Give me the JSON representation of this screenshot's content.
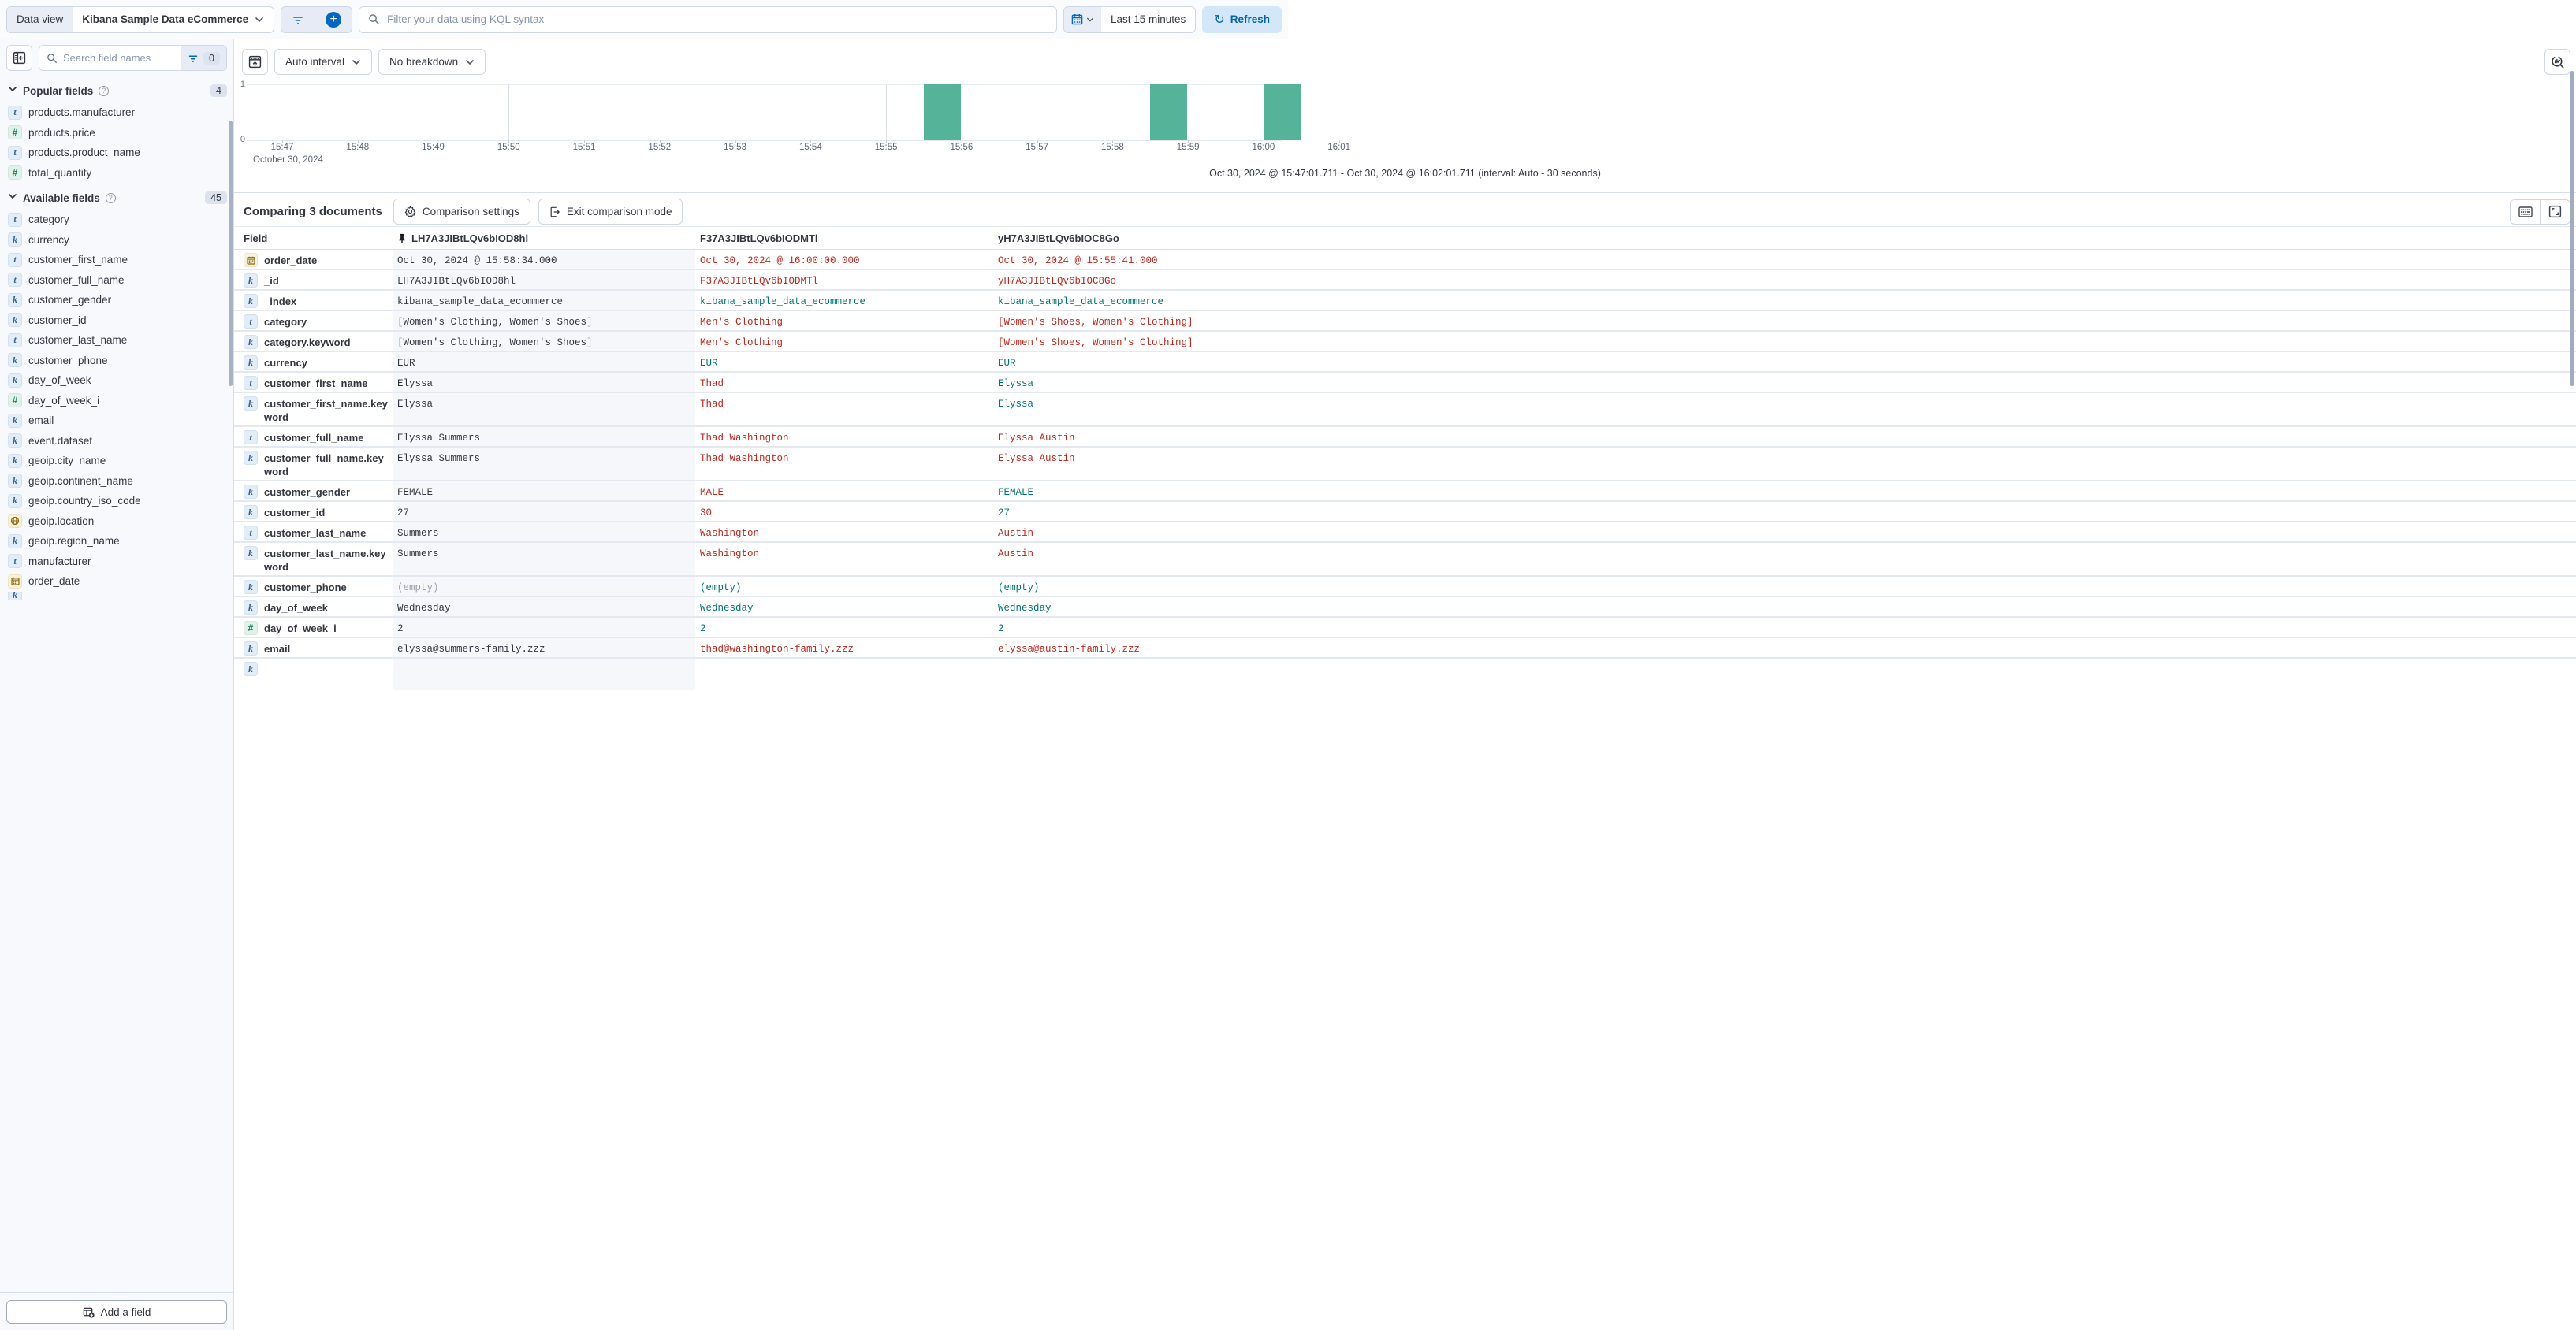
{
  "topbar": {
    "data_view_label": "Data view",
    "data_view_value": "Kibana Sample Data eCommerce",
    "search_placeholder": "Filter your data using KQL syntax",
    "time_range": "Last 15 minutes",
    "refresh_label": "Refresh"
  },
  "sidebar": {
    "search_placeholder": "Search field names",
    "filter_count": "0",
    "sections": [
      {
        "label": "Popular fields",
        "count": "4",
        "items": [
          {
            "icon": "t",
            "name": "products.manufacturer"
          },
          {
            "icon": "num",
            "name": "products.price"
          },
          {
            "icon": "t",
            "name": "products.product_name"
          },
          {
            "icon": "num",
            "name": "total_quantity"
          }
        ]
      },
      {
        "label": "Available fields",
        "count": "45",
        "items": [
          {
            "icon": "t",
            "name": "category"
          },
          {
            "icon": "k",
            "name": "currency"
          },
          {
            "icon": "t",
            "name": "customer_first_name"
          },
          {
            "icon": "t",
            "name": "customer_full_name"
          },
          {
            "icon": "k",
            "name": "customer_gender"
          },
          {
            "icon": "k",
            "name": "customer_id"
          },
          {
            "icon": "t",
            "name": "customer_last_name"
          },
          {
            "icon": "k",
            "name": "customer_phone"
          },
          {
            "icon": "k",
            "name": "day_of_week"
          },
          {
            "icon": "num",
            "name": "day_of_week_i"
          },
          {
            "icon": "k",
            "name": "email"
          },
          {
            "icon": "k",
            "name": "event.dataset"
          },
          {
            "icon": "k",
            "name": "geoip.city_name"
          },
          {
            "icon": "k",
            "name": "geoip.continent_name"
          },
          {
            "icon": "k",
            "name": "geoip.country_iso_code"
          },
          {
            "icon": "geo",
            "name": "geoip.location"
          },
          {
            "icon": "k",
            "name": "geoip.region_name"
          },
          {
            "icon": "t",
            "name": "manufacturer"
          },
          {
            "icon": "date",
            "name": "order_date"
          }
        ]
      }
    ],
    "add_field_label": "Add a field"
  },
  "chart": {
    "interval_label": "Auto interval",
    "breakdown_label": "No breakdown",
    "caption": "Oct 30, 2024 @ 15:47:01.711 - Oct 30, 2024 @ 16:02:01.711 (interval: Auto - 30 seconds)",
    "x_context": "October 30, 2024",
    "chart_data": {
      "type": "bar",
      "x": [
        "15:55:30",
        "15:58:30",
        "16:00:00"
      ],
      "values": [
        1,
        1,
        1
      ],
      "bucket_seconds": 30,
      "x_axis_start": "15:47:00",
      "x_axis_end": "16:02:00",
      "x_tick_labels": [
        "15:47",
        "15:48",
        "15:49",
        "15:50",
        "15:51",
        "15:52",
        "15:53",
        "15:54",
        "15:55",
        "15:56",
        "15:57",
        "15:58",
        "15:59",
        "16:00",
        "16:01"
      ],
      "y_ticks": [
        "1",
        "0"
      ],
      "ylim": [
        0,
        1
      ],
      "bar_color": "#54B399",
      "gridlines_at": [
        "15:50",
        "15:55",
        "16:00"
      ],
      "current_time_marker": true
    }
  },
  "comparison": {
    "title": "Comparing 3 documents",
    "settings_label": "Comparison settings",
    "exit_label": "Exit comparison mode"
  },
  "table": {
    "field_header": "Field",
    "base_doc_id": "LH7A3JIBtLQv6bIOD8hl",
    "doc_headers": [
      "F37A3JIBtLQv6bIODMTl",
      "yH7A3JIBtLQv6bIOC8Go"
    ],
    "rows": [
      {
        "icon": "date",
        "field": "order_date",
        "base": {
          "text": "Oct 30, 2024 @ 15:58:34.000"
        },
        "cells": [
          {
            "text": "Oct 30, 2024 @ 16:00:00.000",
            "status": "diff"
          },
          {
            "text": "Oct 30, 2024 @ 15:55:41.000",
            "status": "diff"
          }
        ]
      },
      {
        "icon": "k",
        "field": "_id",
        "base": {
          "text": "LH7A3JIBtLQv6bIOD8hl"
        },
        "cells": [
          {
            "text": "F37A3JIBtLQv6bIODMTl",
            "status": "diff"
          },
          {
            "text": "yH7A3JIBtLQv6bIOC8Go",
            "status": "diff"
          }
        ]
      },
      {
        "icon": "k",
        "field": "_index",
        "base": {
          "text": "kibana_sample_data_ecommerce"
        },
        "cells": [
          {
            "text": "kibana_sample_data_ecommerce",
            "status": "same"
          },
          {
            "text": "kibana_sample_data_ecommerce",
            "status": "same"
          }
        ]
      },
      {
        "icon": "t",
        "field": "category",
        "base": {
          "text": "Women's Clothing, Women's Shoes",
          "brackets": true
        },
        "cells": [
          {
            "text": "Men's Clothing",
            "status": "diff"
          },
          {
            "text": "[Women's Shoes, Women's Clothing]",
            "status": "diff"
          }
        ]
      },
      {
        "icon": "k",
        "field": "category.keyword",
        "base": {
          "text": "Women's Clothing, Women's Shoes",
          "brackets": true
        },
        "cells": [
          {
            "text": "Men's Clothing",
            "status": "diff"
          },
          {
            "text": "[Women's Shoes, Women's Clothing]",
            "status": "diff"
          }
        ]
      },
      {
        "icon": "k",
        "field": "currency",
        "base": {
          "text": "EUR"
        },
        "cells": [
          {
            "text": "EUR",
            "status": "same"
          },
          {
            "text": "EUR",
            "status": "same"
          }
        ]
      },
      {
        "icon": "t",
        "field": "customer_first_name",
        "base": {
          "text": "Elyssa"
        },
        "cells": [
          {
            "text": "Thad",
            "status": "diff"
          },
          {
            "text": "Elyssa",
            "status": "same"
          }
        ]
      },
      {
        "icon": "k",
        "field": "customer_first_name.keyword",
        "tall": true,
        "base": {
          "text": "Elyssa"
        },
        "cells": [
          {
            "text": "Thad",
            "status": "diff"
          },
          {
            "text": "Elyssa",
            "status": "same"
          }
        ]
      },
      {
        "icon": "t",
        "field": "customer_full_name",
        "base": {
          "text": "Elyssa Summers"
        },
        "cells": [
          {
            "text": "Thad Washington",
            "status": "diff"
          },
          {
            "text": "Elyssa Austin",
            "status": "diff"
          }
        ]
      },
      {
        "icon": "k",
        "field": "customer_full_name.keyword",
        "tall": true,
        "base": {
          "text": "Elyssa Summers"
        },
        "cells": [
          {
            "text": "Thad Washington",
            "status": "diff"
          },
          {
            "text": "Elyssa Austin",
            "status": "diff"
          }
        ]
      },
      {
        "icon": "k",
        "field": "customer_gender",
        "base": {
          "text": "FEMALE"
        },
        "cells": [
          {
            "text": "MALE",
            "status": "diff"
          },
          {
            "text": "FEMALE",
            "status": "same"
          }
        ]
      },
      {
        "icon": "k",
        "field": "customer_id",
        "base": {
          "text": "27"
        },
        "cells": [
          {
            "text": "30",
            "status": "diff"
          },
          {
            "text": "27",
            "status": "same"
          }
        ]
      },
      {
        "icon": "t",
        "field": "customer_last_name",
        "base": {
          "text": "Summers"
        },
        "cells": [
          {
            "text": "Washington",
            "status": "diff"
          },
          {
            "text": "Austin",
            "status": "diff"
          }
        ]
      },
      {
        "icon": "k",
        "field": "customer_last_name.keyword",
        "tall": true,
        "base": {
          "text": "Summers"
        },
        "cells": [
          {
            "text": "Washington",
            "status": "diff"
          },
          {
            "text": "Austin",
            "status": "diff"
          }
        ]
      },
      {
        "icon": "k",
        "field": "customer_phone",
        "base": {
          "text": "(empty)",
          "muted": true
        },
        "cells": [
          {
            "text": "(empty)",
            "status": "same"
          },
          {
            "text": "(empty)",
            "status": "same"
          }
        ]
      },
      {
        "icon": "k",
        "field": "day_of_week",
        "base": {
          "text": "Wednesday"
        },
        "cells": [
          {
            "text": "Wednesday",
            "status": "same"
          },
          {
            "text": "Wednesday",
            "status": "same"
          }
        ]
      },
      {
        "icon": "num",
        "field": "day_of_week_i",
        "base": {
          "text": "2"
        },
        "cells": [
          {
            "text": "2",
            "status": "same"
          },
          {
            "text": "2",
            "status": "same"
          }
        ]
      },
      {
        "icon": "k",
        "field": "email",
        "base": {
          "text": "elyssa@summers-family.zzz"
        },
        "cells": [
          {
            "text": "thad@washington-family.zzz",
            "status": "diff"
          },
          {
            "text": "elyssa@austin-family.zzz",
            "status": "diff"
          }
        ]
      },
      {
        "icon": "k",
        "field": "",
        "partial": true,
        "base": {
          "text": ""
        },
        "cells": [
          {
            "text": "",
            "status": "same"
          },
          {
            "text": "",
            "status": "same"
          }
        ]
      }
    ]
  }
}
